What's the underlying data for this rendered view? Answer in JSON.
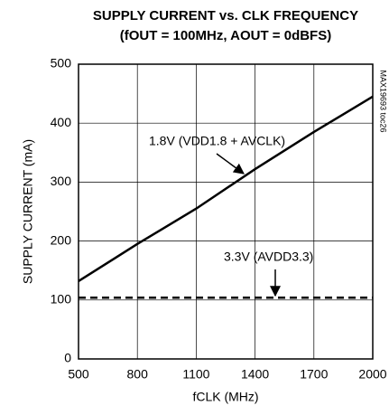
{
  "chart_data": {
    "type": "line",
    "title": "SUPPLY CURRENT vs. CLK FREQUENCY",
    "subtitle": "(fOUT = 100MHz, AOUT = 0dBFS)",
    "x_label": "fCLK (MHz)",
    "y_label": "SUPPLY CURRENT (mA)",
    "side_note": "MAX19693 toc26",
    "x": [
      500,
      800,
      1100,
      1400,
      1700,
      2000
    ],
    "series": [
      {
        "name": "1.8V (VDD1.8 + AVCLK)",
        "color": "#000000",
        "dashed": false,
        "values": [
          132,
          195,
          255,
          322,
          385,
          445
        ]
      },
      {
        "name": "3.3V (AVDD3.3)",
        "color": "#000000",
        "dashed": true,
        "values": [
          104,
          104,
          104,
          104,
          104,
          104
        ]
      }
    ],
    "xlim": [
      500,
      2000
    ],
    "xticks": [
      500,
      800,
      1100,
      1400,
      1700,
      2000
    ],
    "ylim": [
      0,
      500
    ],
    "yticks": [
      0,
      100,
      200,
      300,
      400,
      500
    ],
    "grid": true
  }
}
